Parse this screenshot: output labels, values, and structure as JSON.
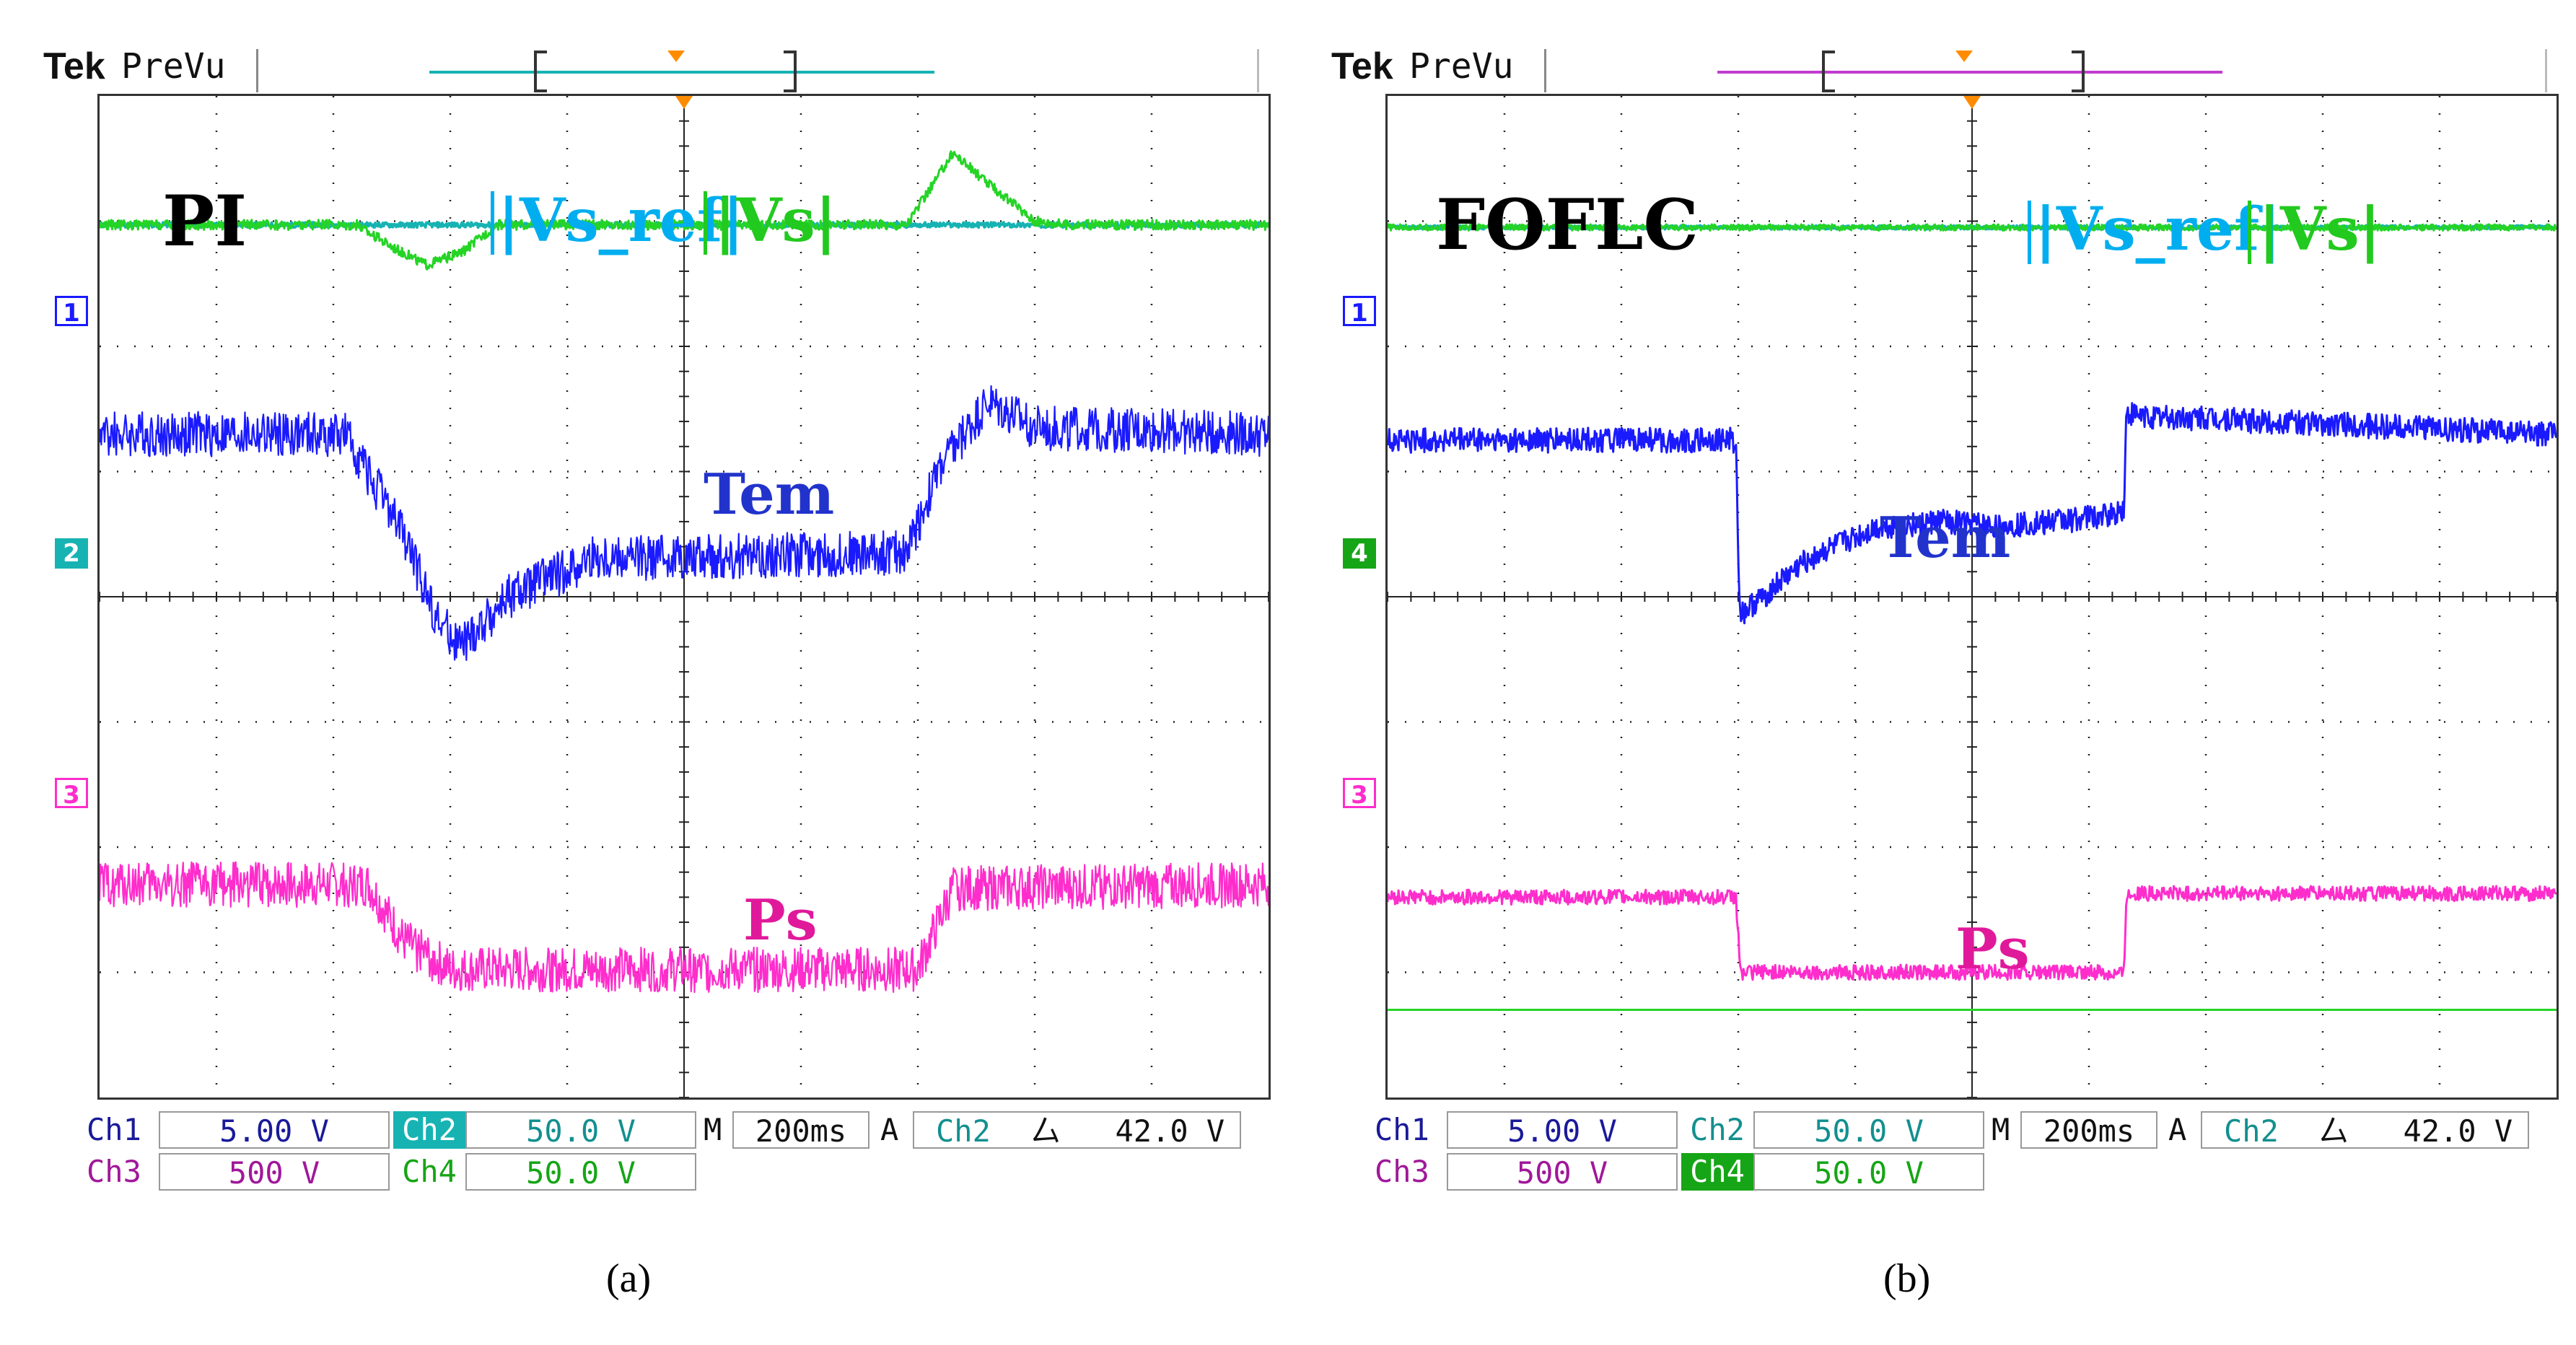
{
  "colors": {
    "ch1": "#1a1aff",
    "ch1_text": "#1a1a9a",
    "ch2": "#17b3b3",
    "ch2_text": "#138f8f",
    "ch3": "#ff2dcc",
    "ch3_text": "#a0189a",
    "ch4": "#25d425",
    "ch4_text": "#16a516",
    "trigger": "#ff8c00",
    "grid": "#222222"
  },
  "panels": [
    {
      "id": "a",
      "header": {
        "brand": "Tek",
        "mode": "PreVu"
      },
      "controller_label": "PI",
      "legend": {
        "vs_ref": "|Vs_ref|",
        "vs": "|Vs|"
      },
      "trace_labels": {
        "tem": "Tem",
        "ps": "Ps"
      },
      "markers": [
        {
          "label": "1",
          "style": "outline",
          "channel": "ch1"
        },
        {
          "label": "2",
          "style": "filled",
          "channel": "ch2"
        },
        {
          "label": "3",
          "style": "outline",
          "channel": "ch3"
        }
      ],
      "readouts": {
        "ch1_label": "Ch1",
        "ch1_scale": "5.00 V",
        "ch2_label": "Ch2",
        "ch2_scale": "50.0 V",
        "ch3_label": "Ch3",
        "ch3_scale": "500 V",
        "ch4_label": "Ch4",
        "ch4_scale": "50.0 V",
        "time_label": "M",
        "time_scale": "200ms",
        "trig_label": "A",
        "trig_source": "Ch2",
        "trig_slope": "⼛",
        "trig_level": "42.0 V",
        "highlight": "ch2"
      },
      "caption": "(a)"
    },
    {
      "id": "b",
      "header": {
        "brand": "Tek",
        "mode": "PreVu"
      },
      "controller_label": "FOFLC",
      "legend": {
        "vs_ref": "|Vs_ref|",
        "vs": "|Vs|"
      },
      "trace_labels": {
        "tem": "Tem",
        "ps": "Ps"
      },
      "markers": [
        {
          "label": "1",
          "style": "outline",
          "channel": "ch1"
        },
        {
          "label": "4",
          "style": "filled",
          "channel": "ch4"
        },
        {
          "label": "3",
          "style": "outline",
          "channel": "ch3"
        }
      ],
      "readouts": {
        "ch1_label": "Ch1",
        "ch1_scale": "5.00 V",
        "ch2_label": "Ch2",
        "ch2_scale": "50.0 V",
        "ch3_label": "Ch3",
        "ch3_scale": "500 V",
        "ch4_label": "Ch4",
        "ch4_scale": "50.0 V",
        "time_label": "M",
        "time_scale": "200ms",
        "trig_label": "A",
        "trig_source": "Ch2",
        "trig_slope": "⼛",
        "trig_level": "42.0 V",
        "highlight": "ch4"
      },
      "caption": "(b)"
    }
  ],
  "chart_data": [
    {
      "type": "line",
      "title": "PI",
      "x_divisions": 10,
      "y_divisions": 8,
      "xlim": [
        0,
        10
      ],
      "ylim": [
        -4,
        4
      ],
      "series": [
        {
          "name": "|Vs_ref|",
          "channel": "ch2",
          "x": [
            0,
            10
          ],
          "y": [
            2.97,
            2.97
          ],
          "noise": 0.02
        },
        {
          "name": "|Vs|",
          "channel": "ch4",
          "x": [
            0,
            2.2,
            2.5,
            2.8,
            3.1,
            3.4,
            6.9,
            7.1,
            7.3,
            7.6,
            8.0,
            8.3,
            10
          ],
          "y": [
            2.97,
            2.97,
            2.8,
            2.65,
            2.75,
            2.97,
            2.97,
            3.25,
            3.55,
            3.3,
            3.0,
            2.97,
            2.97
          ],
          "noise": 0.04
        },
        {
          "name": "Tem",
          "channel": "ch1",
          "x": [
            0,
            2.1,
            2.6,
            2.9,
            3.1,
            3.5,
            4.2,
            6.9,
            7.2,
            7.6,
            8.0,
            10
          ],
          "y": [
            1.3,
            1.3,
            0.5,
            -0.2,
            -0.4,
            0.0,
            0.3,
            0.35,
            1.05,
            1.55,
            1.35,
            1.3
          ],
          "noise": 0.18
        },
        {
          "name": "Ps",
          "channel": "ch3",
          "x": [
            0,
            2.3,
            2.6,
            3.0,
            7.0,
            7.3,
            10
          ],
          "y": [
            -2.3,
            -2.3,
            -2.75,
            -2.98,
            -2.98,
            -2.33,
            -2.3
          ],
          "noise": 0.18
        }
      ]
    },
    {
      "type": "line",
      "title": "FOFLC",
      "x_divisions": 10,
      "y_divisions": 8,
      "xlim": [
        0,
        10
      ],
      "ylim": [
        -4,
        4
      ],
      "series": [
        {
          "name": "|Vs_ref|",
          "channel": "ch2",
          "x": [
            0,
            10
          ],
          "y": [
            2.95,
            2.95
          ],
          "noise": 0.015
        },
        {
          "name": "|Vs|",
          "channel": "ch4",
          "x": [
            0,
            10
          ],
          "y": [
            2.95,
            2.95
          ],
          "noise": 0.025
        },
        {
          "name": "Tem",
          "channel": "ch1",
          "x": [
            0,
            2.98,
            3.0,
            3.02,
            3.6,
            4.2,
            4.8,
            5.2,
            6.2,
            6.3,
            6.32,
            10
          ],
          "y": [
            1.25,
            1.25,
            0.3,
            -0.15,
            0.3,
            0.55,
            0.6,
            0.55,
            0.65,
            0.7,
            1.45,
            1.3
          ],
          "noise": 0.1
        },
        {
          "name": "Ps",
          "channel": "ch3",
          "x": [
            0,
            2.98,
            3.02,
            6.2,
            6.3,
            6.32,
            10
          ],
          "y": [
            -2.4,
            -2.4,
            -3.0,
            -3.0,
            -3.0,
            -2.37,
            -2.37
          ],
          "noise": 0.06
        },
        {
          "name": "Ch4 ref",
          "channel": "ch4",
          "x": [
            0,
            10
          ],
          "y": [
            -3.3,
            -3.3
          ],
          "noise": 0
        }
      ]
    }
  ]
}
